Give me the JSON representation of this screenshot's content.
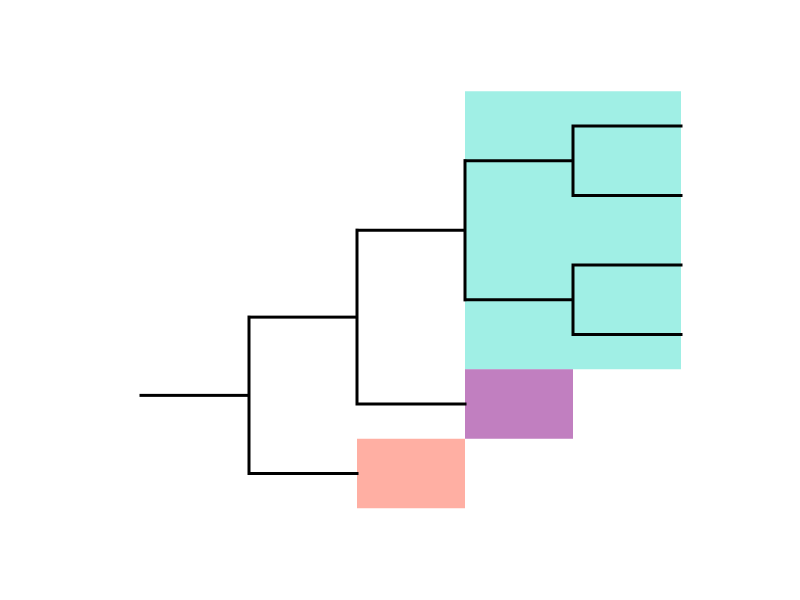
{
  "diagram": {
    "type": "phylogenetic-tree",
    "orientation": "left-to-right",
    "root": {
      "children": [
        {
          "id": "inner-clade",
          "children": [
            {
              "id": "teal-clade",
              "children": [
                {
                  "id": "top-subclade",
                  "children": [
                    {
                      "id": "leaf-1",
                      "children": []
                    },
                    {
                      "id": "leaf-2",
                      "children": []
                    }
                  ]
                },
                {
                  "id": "bottom-subclade",
                  "children": [
                    {
                      "id": "leaf-3",
                      "children": []
                    },
                    {
                      "id": "leaf-4",
                      "children": []
                    }
                  ]
                }
              ]
            },
            {
              "id": "purple-leaf",
              "children": []
            }
          ]
        },
        {
          "id": "salmon-leaf",
          "children": []
        }
      ]
    },
    "highlights": [
      {
        "name": "teal-clade-highlight",
        "node": "teal-clade",
        "color": "#a0efe5"
      },
      {
        "name": "purple-leaf-highlight",
        "node": "purple-leaf",
        "color": "#c17fc0"
      },
      {
        "name": "salmon-leaf-highlight",
        "node": "salmon-leaf",
        "color": "#ffafa3"
      }
    ],
    "branch_color": "#000000"
  }
}
